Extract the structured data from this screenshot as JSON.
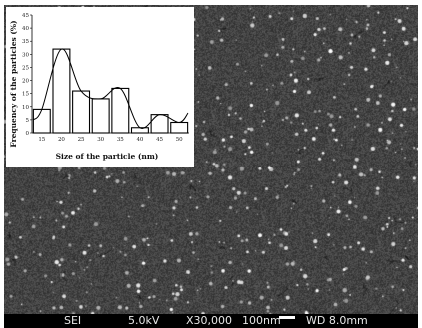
{
  "image": {
    "detector": "SEI",
    "voltage": "5.0kV",
    "magnification": "X30,000",
    "scale": "100nm",
    "working_distance": "WD 8.0mm"
  },
  "chart_data": {
    "type": "bar",
    "categories": [
      "15",
      "20",
      "25",
      "30",
      "35",
      "40",
      "45",
      "50"
    ],
    "values": [
      9,
      32,
      16,
      13,
      17,
      2,
      7,
      4
    ],
    "fit_curve": true,
    "title": "",
    "xlabel": "Size of the particle (nm)",
    "ylabel": "Frequency of the particles (%)",
    "ylim": [
      0,
      45
    ],
    "yticks": [
      "0",
      "5",
      "10",
      "15",
      "20",
      "25",
      "30",
      "35",
      "40",
      "45"
    ],
    "grid": false,
    "colors": {
      "bar": "#000000",
      "bar_fill": "#ffffff",
      "curve": "#000000"
    }
  }
}
